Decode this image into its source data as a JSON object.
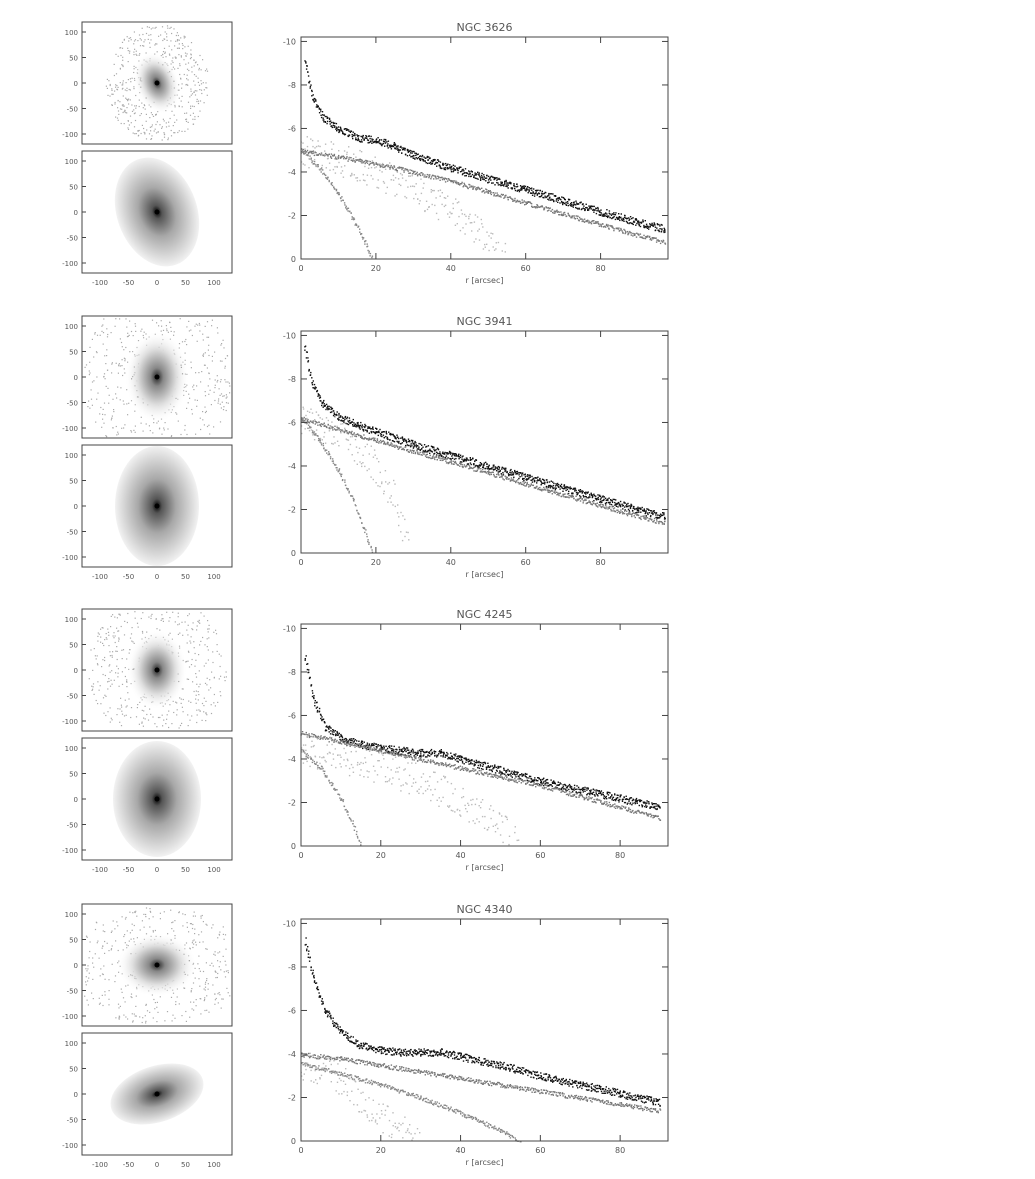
{
  "figure": {
    "panels": [
      {
        "title": "NGC 3626",
        "xlabel": "r [arcsec]",
        "x_ticks": [
          "0",
          "20",
          "40",
          "60",
          "80"
        ],
        "y_ticks": [
          "-10",
          "-8",
          "-6",
          "-4",
          "-2",
          "0"
        ],
        "img_y_ticks": [
          "100",
          "50",
          "0",
          "-50",
          "-100"
        ],
        "img_x_ticks": [
          "-100",
          "-50",
          "0",
          "50",
          "100"
        ]
      },
      {
        "title": "NGC 3941",
        "xlabel": "r [arcsec]",
        "x_ticks": [
          "0",
          "20",
          "40",
          "60",
          "80"
        ],
        "y_ticks": [
          "-10",
          "-8",
          "-6",
          "-4",
          "-2",
          "0"
        ],
        "img_y_ticks": [
          "100",
          "50",
          "0",
          "-50",
          "-100"
        ],
        "img_x_ticks": [
          "-100",
          "-50",
          "0",
          "50",
          "100"
        ]
      },
      {
        "title": "NGC 4245",
        "xlabel": "r [arcsec]",
        "x_ticks": [
          "0",
          "20",
          "40",
          "60",
          "80"
        ],
        "y_ticks": [
          "-10",
          "-8",
          "-6",
          "-4",
          "-2",
          "0"
        ],
        "img_y_ticks": [
          "100",
          "50",
          "0",
          "-50",
          "-100"
        ],
        "img_x_ticks": [
          "-100",
          "-50",
          "0",
          "50",
          "100"
        ]
      },
      {
        "title": "NGC 4340",
        "xlabel": "r [arcsec]",
        "x_ticks": [
          "0",
          "20",
          "40",
          "60",
          "80"
        ],
        "y_ticks": [
          "-10",
          "-8",
          "-6",
          "-4",
          "-2",
          "0"
        ],
        "img_y_ticks": [
          "100",
          "50",
          "0",
          "-50",
          "-100"
        ],
        "img_x_ticks": [
          "-100",
          "-50",
          "0",
          "50",
          "100"
        ]
      }
    ]
  },
  "chart_data": [
    {
      "type": "scatter",
      "title": "NGC 3626",
      "xlabel": "r [arcsec]",
      "ylabel": "",
      "xlim": [
        0,
        98
      ],
      "ylim": [
        0,
        -10
      ],
      "series": [
        {
          "x": [
            1,
            3,
            6,
            10,
            15,
            20,
            25,
            30,
            40,
            50,
            60,
            70,
            80,
            90,
            97
          ],
          "y": [
            -9,
            -7.5,
            -6.5,
            -6,
            -5.6,
            -5.5,
            -5.2,
            -4.8,
            -4.2,
            -3.7,
            -3.2,
            -2.7,
            -2.2,
            -1.7,
            -1.4
          ],
          "color": "#111111"
        },
        {
          "x": [
            0,
            10,
            20,
            30,
            40,
            50,
            60,
            70,
            80,
            90,
            97
          ],
          "y": [
            -5,
            -4.7,
            -4.4,
            -4,
            -3.6,
            -3.1,
            -2.6,
            -2.1,
            -1.6,
            -1.1,
            -0.8
          ],
          "color": "#777777"
        },
        {
          "x": [
            0,
            5,
            10,
            14,
            17,
            19
          ],
          "y": [
            -5,
            -4.2,
            -3,
            -1.8,
            -0.8,
            0
          ],
          "color": "#888888"
        },
        {
          "x": [
            0,
            10,
            20,
            30,
            40,
            50,
            55
          ],
          "y": [
            -5,
            -4.6,
            -4,
            -3.2,
            -2.2,
            -1,
            0
          ],
          "color": "#bbbbbb"
        }
      ]
    },
    {
      "type": "scatter",
      "title": "NGC 3941",
      "xlabel": "r [arcsec]",
      "ylabel": "",
      "xlim": [
        0,
        98
      ],
      "ylim": [
        0,
        -10
      ],
      "series": [
        {
          "x": [
            1,
            3,
            6,
            10,
            15,
            20,
            25,
            30,
            40,
            50,
            60,
            70,
            80,
            90,
            97
          ],
          "y": [
            -9.4,
            -7.8,
            -6.8,
            -6.3,
            -5.9,
            -5.6,
            -5.3,
            -5,
            -4.5,
            -4,
            -3.5,
            -3,
            -2.5,
            -2,
            -1.7
          ],
          "color": "#111111"
        },
        {
          "x": [
            0,
            10,
            20,
            30,
            40,
            50,
            60,
            70,
            80,
            90,
            97
          ],
          "y": [
            -6.2,
            -5.7,
            -5.2,
            -4.7,
            -4.2,
            -3.7,
            -3.2,
            -2.7,
            -2.2,
            -1.7,
            -1.4
          ],
          "color": "#777777"
        },
        {
          "x": [
            0,
            5,
            10,
            14,
            17,
            19
          ],
          "y": [
            -6.2,
            -5.2,
            -3.8,
            -2.4,
            -1,
            0
          ],
          "color": "#888888"
        },
        {
          "x": [
            0,
            10,
            20,
            25,
            29
          ],
          "y": [
            -6.2,
            -5.5,
            -4,
            -2.5,
            0
          ],
          "color": "#bbbbbb"
        }
      ]
    },
    {
      "type": "scatter",
      "title": "NGC 4245",
      "xlabel": "r [arcsec]",
      "ylabel": "",
      "xlim": [
        0,
        92
      ],
      "ylim": [
        0,
        -10
      ],
      "series": [
        {
          "x": [
            1,
            3,
            6,
            10,
            15,
            20,
            25,
            30,
            35,
            40,
            50,
            60,
            70,
            80,
            90
          ],
          "y": [
            -8.6,
            -6.8,
            -5.5,
            -5,
            -4.7,
            -4.5,
            -4.4,
            -4.3,
            -4.3,
            -4,
            -3.5,
            -3,
            -2.6,
            -2.2,
            -1.8
          ],
          "color": "#111111"
        },
        {
          "x": [
            0,
            10,
            20,
            30,
            40,
            50,
            60,
            70,
            80,
            90
          ],
          "y": [
            -5.2,
            -4.8,
            -4.4,
            -4,
            -3.6,
            -3.2,
            -2.8,
            -2.3,
            -1.8,
            -1.3
          ],
          "color": "#777777"
        },
        {
          "x": [
            0,
            5,
            10,
            13,
            15
          ],
          "y": [
            -4.4,
            -3.6,
            -2.2,
            -1,
            0
          ],
          "color": "#888888"
        },
        {
          "x": [
            0,
            10,
            20,
            30,
            40,
            50,
            55
          ],
          "y": [
            -4.4,
            -4.1,
            -3.6,
            -3,
            -2.1,
            -1,
            0
          ],
          "color": "#bbbbbb"
        }
      ]
    },
    {
      "type": "scatter",
      "title": "NGC 4340",
      "xlabel": "r [arcsec]",
      "ylabel": "",
      "xlim": [
        0,
        92
      ],
      "ylim": [
        0,
        -10
      ],
      "series": [
        {
          "x": [
            1,
            3,
            6,
            10,
            15,
            20,
            25,
            30,
            35,
            40,
            50,
            60,
            70,
            80,
            90
          ],
          "y": [
            -9.2,
            -7.5,
            -6,
            -5,
            -4.4,
            -4.2,
            -4.1,
            -4.1,
            -4.1,
            -3.9,
            -3.5,
            -3,
            -2.6,
            -2.2,
            -1.8
          ],
          "color": "#111111"
        },
        {
          "x": [
            0,
            10,
            20,
            30,
            40,
            50,
            60,
            70,
            80,
            90
          ],
          "y": [
            -4,
            -3.8,
            -3.5,
            -3.2,
            -2.9,
            -2.6,
            -2.3,
            -2,
            -1.7,
            -1.4
          ],
          "color": "#777777"
        },
        {
          "x": [
            0,
            10,
            20,
            30,
            40,
            50,
            55
          ],
          "y": [
            -3.6,
            -3.1,
            -2.6,
            -2,
            -1.3,
            -0.5,
            0
          ],
          "color": "#888888"
        },
        {
          "x": [
            0,
            5,
            10,
            15,
            20,
            25,
            30
          ],
          "y": [
            -3.6,
            -3.3,
            -2.8,
            -2,
            -1.2,
            -0.5,
            0
          ],
          "color": "#bbbbbb"
        }
      ]
    }
  ]
}
